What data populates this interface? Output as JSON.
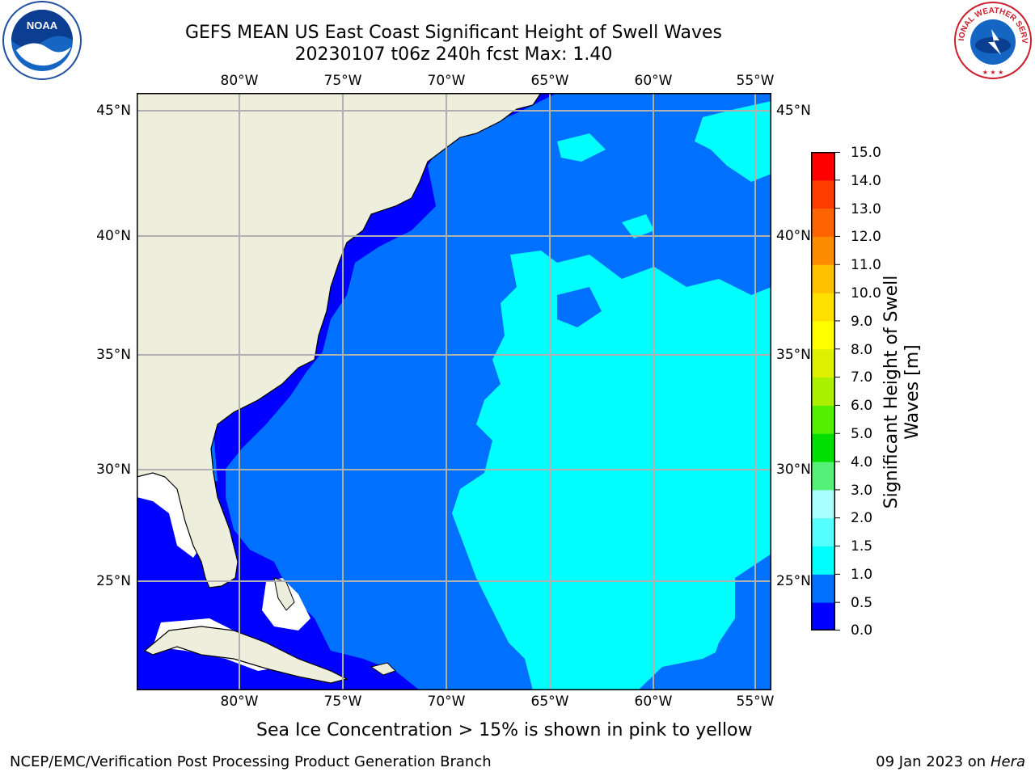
{
  "title": {
    "line1": "GEFS MEAN US East Coast Significant Height of Swell Waves",
    "line2": "20230107 t06z 240h fcst   Max: 1.40"
  },
  "axes": {
    "lon_labels": [
      "80°W",
      "75°W",
      "70°W",
      "65°W",
      "60°W",
      "55°W"
    ],
    "lat_labels": [
      "45°N",
      "40°N",
      "35°N",
      "30°N",
      "25°N"
    ]
  },
  "colorbar": {
    "label_line1": "Significant Height of Swell",
    "label_line2": "Waves [m]",
    "ticks": [
      "0.0",
      "0.5",
      "1.0",
      "1.5",
      "2.0",
      "3.0",
      "4.0",
      "5.0",
      "6.0",
      "7.0",
      "8.0",
      "9.0",
      "10.0",
      "11.0",
      "12.0",
      "13.0",
      "14.0",
      "15.0"
    ],
    "colors": [
      "#0000ff",
      "#0070ff",
      "#00ffff",
      "#55ffff",
      "#aaffff",
      "#55f077",
      "#00e000",
      "#55f000",
      "#aaf000",
      "#dcf000",
      "#ffff00",
      "#ffe000",
      "#ffc000",
      "#ff8c00",
      "#ff6400",
      "#ff3c00",
      "#ff0000"
    ]
  },
  "note": "Sea Ice Concentration > 15% is shown in pink to yellow",
  "footer": {
    "left": "NCEP/EMC/Verification Post Processing Product Generation Branch",
    "date": "09 Jan 2023 on ",
    "host": "Hera"
  },
  "logos": {
    "left_icon": "noaa-logo",
    "left_text": "NOAA",
    "right_icon": "nws-logo",
    "right_text": "NATIONAL WEATHER SERVICE"
  },
  "map_colors": {
    "land": "#eeeedd",
    "wave_0_05": "#0000ff",
    "wave_05_10": "#0070ff",
    "wave_10_15": "#00ffff",
    "grid": "#b0b0b0",
    "nodata": "#ffffff"
  }
}
